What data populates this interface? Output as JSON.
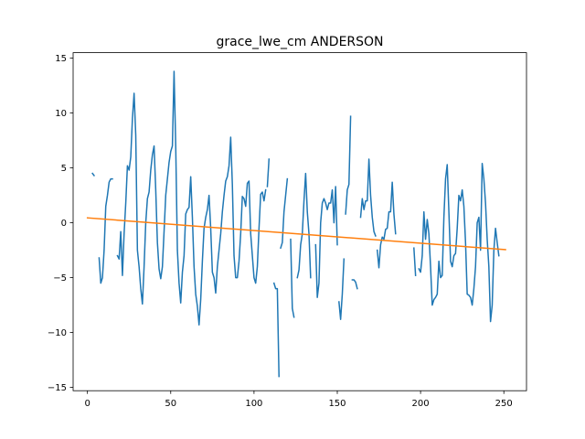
{
  "chart_data": {
    "type": "line",
    "title": "grace_lwe_cm ANDERSON",
    "xlabel": "",
    "ylabel": "",
    "xlim": [
      -8.6,
      263.6
    ],
    "ylim": [
      -15.3,
      15.5
    ],
    "xticks": [
      0,
      50,
      100,
      150,
      200,
      250
    ],
    "yticks": [
      -15,
      -10,
      -5,
      0,
      5,
      10,
      15
    ],
    "grid": false,
    "legend": "none",
    "series": [
      {
        "color": "#1f77b4",
        "segments": [
          [
            [
              3,
              4.5
            ],
            [
              4,
              4.3
            ]
          ],
          [
            [
              7,
              -3.2
            ],
            [
              8,
              -5.5
            ],
            [
              9,
              -5.0
            ],
            [
              10,
              -2.5
            ],
            [
              11,
              1.5
            ],
            [
              12,
              2.5
            ],
            [
              13,
              3.7
            ],
            [
              14,
              4.0
            ],
            [
              15,
              4.0
            ]
          ],
          [
            [
              18,
              -3.0
            ],
            [
              19,
              -3.3
            ],
            [
              20,
              -0.8
            ],
            [
              21,
              -4.8
            ],
            [
              22,
              -1.0
            ],
            [
              23,
              1.8
            ],
            [
              24,
              5.2
            ],
            [
              25,
              4.8
            ],
            [
              26,
              6.0
            ],
            [
              27,
              9.5
            ],
            [
              28,
              11.8
            ],
            [
              29,
              8.0
            ],
            [
              30,
              -2.5
            ],
            [
              31,
              -4.0
            ],
            [
              32,
              -6.0
            ],
            [
              33,
              -7.4
            ],
            [
              34,
              -4.0
            ],
            [
              35,
              0.0
            ],
            [
              36,
              2.2
            ],
            [
              37,
              2.8
            ],
            [
              38,
              4.8
            ],
            [
              39,
              6.2
            ],
            [
              40,
              7.0
            ],
            [
              41,
              3.0
            ],
            [
              42,
              -1.8
            ],
            [
              43,
              -4.2
            ],
            [
              44,
              -5.1
            ],
            [
              45,
              -4.0
            ],
            [
              46,
              -0.8
            ],
            [
              47,
              2.5
            ],
            [
              48,
              4.0
            ],
            [
              49,
              5.5
            ],
            [
              50,
              6.5
            ],
            [
              51,
              7.0
            ],
            [
              52,
              13.8
            ],
            [
              53,
              7.0
            ],
            [
              54,
              -2.5
            ],
            [
              55,
              -5.5
            ],
            [
              56,
              -7.3
            ],
            [
              57,
              -4.5
            ],
            [
              58,
              -3.0
            ],
            [
              59,
              0.8
            ],
            [
              60,
              1.2
            ],
            [
              61,
              1.4
            ],
            [
              62,
              4.2
            ],
            [
              63,
              0.5
            ],
            [
              64,
              -4.0
            ],
            [
              65,
              -6.5
            ],
            [
              66,
              -7.6
            ],
            [
              67,
              -9.3
            ],
            [
              68,
              -7.0
            ],
            [
              69,
              -3.5
            ],
            [
              70,
              -0.5
            ],
            [
              71,
              0.5
            ],
            [
              72,
              1.2
            ],
            [
              73,
              2.5
            ],
            [
              74,
              -0.5
            ],
            [
              75,
              -4.5
            ],
            [
              76,
              -5.0
            ],
            [
              77,
              -6.4
            ],
            [
              78,
              -4.0
            ],
            [
              79,
              -2.5
            ],
            [
              80,
              -1.0
            ],
            [
              81,
              1.0
            ],
            [
              82,
              2.5
            ],
            [
              83,
              3.8
            ],
            [
              84,
              4.2
            ],
            [
              85,
              5.2
            ],
            [
              86,
              7.8
            ],
            [
              87,
              3.5
            ],
            [
              88,
              -3.0
            ],
            [
              89,
              -5.0
            ],
            [
              90,
              -5.0
            ],
            [
              91,
              -3.5
            ],
            [
              92,
              -1.0
            ],
            [
              93,
              2.4
            ],
            [
              94,
              2.2
            ],
            [
              95,
              1.5
            ],
            [
              96,
              3.6
            ],
            [
              97,
              3.8
            ],
            [
              98,
              -1.0
            ],
            [
              99,
              -3.0
            ],
            [
              100,
              -5.0
            ],
            [
              101,
              -5.5
            ],
            [
              102,
              -4.0
            ],
            [
              103,
              -0.5
            ],
            [
              104,
              2.6
            ],
            [
              105,
              2.8
            ],
            [
              106,
              2.0
            ],
            [
              107,
              3.0
            ]
          ],
          [
            [
              108,
              3.3
            ],
            [
              109,
              5.8
            ]
          ],
          [
            [
              112,
              -5.5
            ],
            [
              113,
              -6.0
            ],
            [
              114,
              -6.0
            ],
            [
              115,
              -14.0
            ]
          ],
          [
            [
              116,
              -2.3
            ],
            [
              117,
              -1.8
            ],
            [
              118,
              1.0
            ],
            [
              119,
              2.5
            ],
            [
              120,
              4.0
            ]
          ],
          [
            [
              122,
              -1.5
            ],
            [
              123,
              -7.8
            ],
            [
              124,
              -8.6
            ]
          ],
          [
            [
              126,
              -5.0
            ],
            [
              127,
              -4.3
            ],
            [
              128,
              -2.0
            ],
            [
              129,
              -1.0
            ],
            [
              130,
              2.0
            ],
            [
              131,
              4.5
            ],
            [
              132,
              1.0
            ],
            [
              133,
              -1.0
            ],
            [
              134,
              -5.0
            ]
          ],
          [
            [
              137,
              -2.0
            ],
            [
              138,
              -6.8
            ],
            [
              139,
              -5.5
            ],
            [
              140,
              0.0
            ],
            [
              141,
              1.8
            ],
            [
              142,
              2.2
            ],
            [
              143,
              1.8
            ],
            [
              144,
              1.2
            ],
            [
              145,
              1.8
            ],
            [
              146,
              1.8
            ],
            [
              147,
              3.0
            ],
            [
              148,
              0.0
            ],
            [
              149,
              3.3
            ],
            [
              150,
              -2.0
            ]
          ],
          [
            [
              151,
              -7.2
            ],
            [
              152,
              -8.8
            ],
            [
              153,
              -6.5
            ],
            [
              154,
              -3.3
            ]
          ],
          [
            [
              155,
              0.8
            ],
            [
              156,
              3.0
            ],
            [
              157,
              3.5
            ],
            [
              158,
              9.7
            ]
          ],
          [
            [
              159,
              -5.2
            ],
            [
              160,
              -5.2
            ],
            [
              161,
              -5.4
            ],
            [
              162,
              -6.0
            ]
          ],
          [
            [
              164,
              0.5
            ],
            [
              165,
              2.2
            ],
            [
              166,
              1.2
            ],
            [
              167,
              2.0
            ],
            [
              168,
              2.0
            ],
            [
              169,
              5.8
            ],
            [
              170,
              2.5
            ],
            [
              171,
              0.5
            ],
            [
              172,
              -0.8
            ],
            [
              173,
              -1.2
            ]
          ],
          [
            [
              174,
              -2.5
            ],
            [
              175,
              -4.1
            ],
            [
              176,
              -2.0
            ],
            [
              177,
              -1.3
            ],
            [
              178,
              -1.5
            ],
            [
              179,
              -0.6
            ],
            [
              180,
              -0.5
            ],
            [
              181,
              1.0
            ],
            [
              182,
              1.0
            ],
            [
              183,
              3.7
            ],
            [
              184,
              0.8
            ],
            [
              185,
              -1.0
            ]
          ],
          [
            [
              196,
              -2.3
            ],
            [
              197,
              -4.8
            ]
          ],
          [
            [
              199,
              -4.2
            ],
            [
              200,
              -4.5
            ],
            [
              201,
              -3.0
            ],
            [
              202,
              1.0
            ],
            [
              203,
              -1.5
            ],
            [
              204,
              0.3
            ],
            [
              205,
              -1.0
            ],
            [
              206,
              -4.0
            ],
            [
              207,
              -7.5
            ],
            [
              208,
              -7.0
            ],
            [
              209,
              -6.8
            ],
            [
              210,
              -6.5
            ],
            [
              211,
              -3.5
            ],
            [
              212,
              -5.0
            ],
            [
              213,
              -4.8
            ],
            [
              214,
              0.5
            ],
            [
              215,
              4.0
            ],
            [
              216,
              5.3
            ],
            [
              217,
              1.0
            ],
            [
              218,
              -3.5
            ],
            [
              219,
              -4.0
            ],
            [
              220,
              -3.0
            ],
            [
              221,
              -2.8
            ],
            [
              222,
              -0.5
            ],
            [
              223,
              2.5
            ],
            [
              224,
              2.0
            ],
            [
              225,
              3.0
            ],
            [
              226,
              1.5
            ],
            [
              227,
              -1.8
            ],
            [
              228,
              -6.5
            ],
            [
              229,
              -6.6
            ],
            [
              230,
              -6.8
            ],
            [
              231,
              -7.5
            ],
            [
              232,
              -6.0
            ],
            [
              233,
              -4.0
            ],
            [
              234,
              0.0
            ],
            [
              235,
              0.5
            ],
            [
              236,
              -2.5
            ],
            [
              237,
              5.4
            ],
            [
              238,
              4.0
            ],
            [
              239,
              1.8
            ],
            [
              240,
              -1.5
            ],
            [
              241,
              -4.0
            ],
            [
              242,
              -9.0
            ],
            [
              243,
              -7.5
            ],
            [
              244,
              -2.5
            ],
            [
              245,
              -0.5
            ],
            [
              246,
              -1.8
            ],
            [
              247,
              -3.0
            ]
          ]
        ]
      },
      {
        "color": "#ff7f0e",
        "points": [
          [
            0,
            0.45
          ],
          [
            251,
            -2.45
          ]
        ]
      }
    ]
  }
}
